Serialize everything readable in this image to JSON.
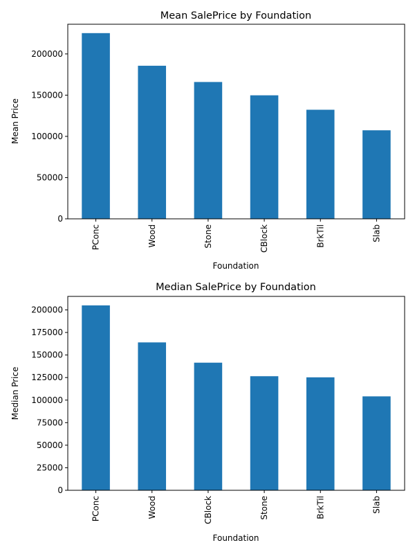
{
  "chart_data": [
    {
      "type": "bar",
      "title": "Mean SalePrice by Foundation",
      "xlabel": "Foundation",
      "ylabel": "Mean Price",
      "categories": [
        "PConc",
        "Wood",
        "Stone",
        "CBlock",
        "BrkTil",
        "Slab"
      ],
      "values": [
        225230,
        185666,
        165959,
        149806,
        132291,
        107366
      ],
      "ylim": [
        0,
        236000
      ],
      "yticks": [
        0,
        50000,
        100000,
        150000,
        200000
      ],
      "bar_color": "#1f77b4",
      "grid": false,
      "legend": "none"
    },
    {
      "type": "bar",
      "title": "Median SalePrice by Foundation",
      "xlabel": "Foundation",
      "ylabel": "Median Price",
      "categories": [
        "PConc",
        "Wood",
        "CBlock",
        "Stone",
        "BrkTil",
        "Slab"
      ],
      "values": [
        205000,
        164000,
        141500,
        126500,
        125250,
        104150
      ],
      "ylim": [
        0,
        215000
      ],
      "yticks": [
        0,
        25000,
        50000,
        75000,
        100000,
        125000,
        150000,
        175000,
        200000
      ],
      "bar_color": "#1f77b4",
      "grid": false,
      "legend": "none"
    }
  ]
}
